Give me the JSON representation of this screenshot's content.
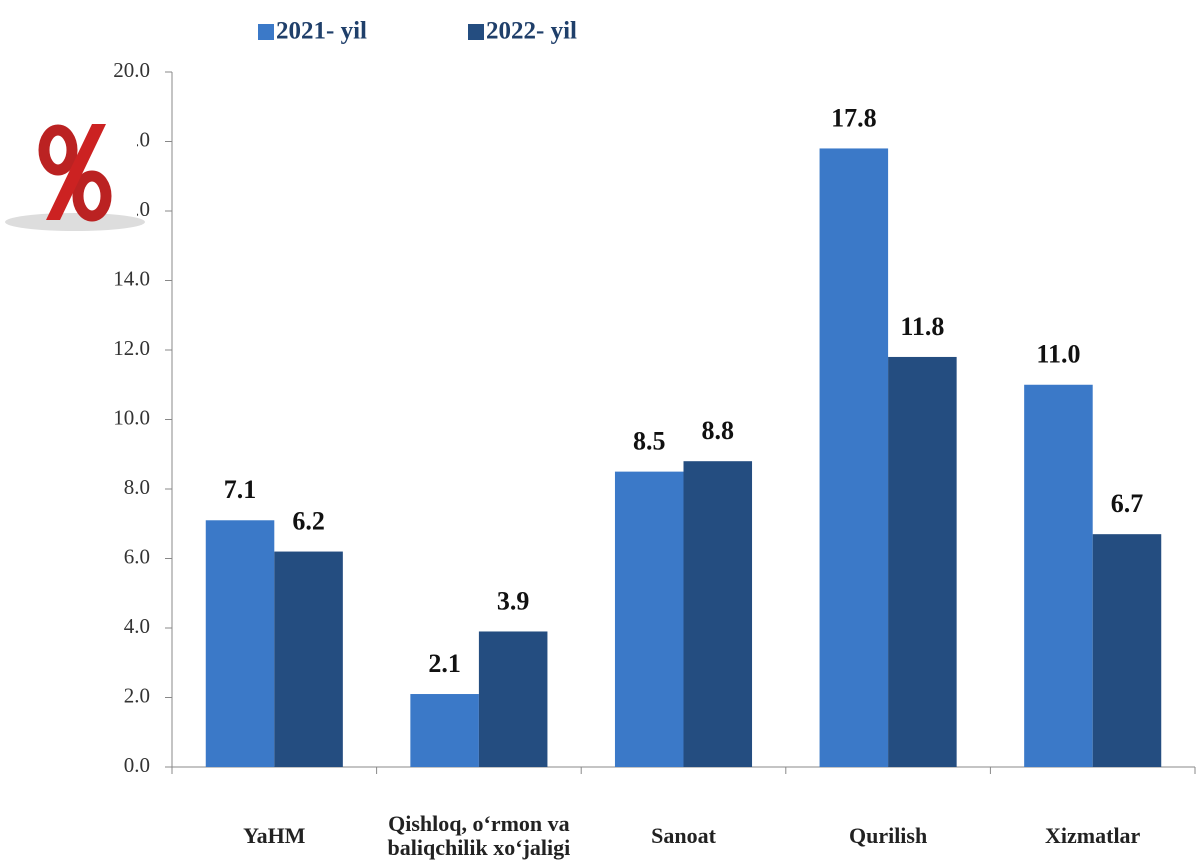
{
  "chart_data": {
    "type": "bar",
    "categories": [
      "YaHM",
      "Qishloq, o‘rmon va baliqchilik xo‘jaligi",
      "Sanoat",
      "Qurilish",
      "Xizmatlar"
    ],
    "series": [
      {
        "name": "2021- yil",
        "color": "#3b79c8",
        "values": [
          7.1,
          2.1,
          8.5,
          17.8,
          11.0
        ],
        "value_labels": [
          "7.1",
          "2.1",
          "8.5",
          "17.8",
          "11.0"
        ]
      },
      {
        "name": "2022- yil",
        "color": "#244d80",
        "values": [
          6.2,
          3.9,
          8.8,
          11.8,
          6.7
        ],
        "value_labels": [
          "6.2",
          "3.9",
          "8.8",
          "11.8",
          "6.7"
        ]
      }
    ],
    "ylim": [
      0,
      20
    ],
    "yticks": [
      {
        "value": 0,
        "label": "0.0"
      },
      {
        "value": 2,
        "label": "2.0"
      },
      {
        "value": 4,
        "label": "4.0"
      },
      {
        "value": 6,
        "label": "6.0"
      },
      {
        "value": 8,
        "label": "8.0"
      },
      {
        "value": 10,
        "label": "10.0"
      },
      {
        "value": 12,
        "label": "12.0"
      },
      {
        "value": 14,
        "label": "14.0"
      },
      {
        "value": 16,
        "label": "16.0"
      },
      {
        "value": 18,
        "label": "18.0"
      },
      {
        "value": 20,
        "label": "20.0"
      }
    ],
    "legend": "top"
  }
}
